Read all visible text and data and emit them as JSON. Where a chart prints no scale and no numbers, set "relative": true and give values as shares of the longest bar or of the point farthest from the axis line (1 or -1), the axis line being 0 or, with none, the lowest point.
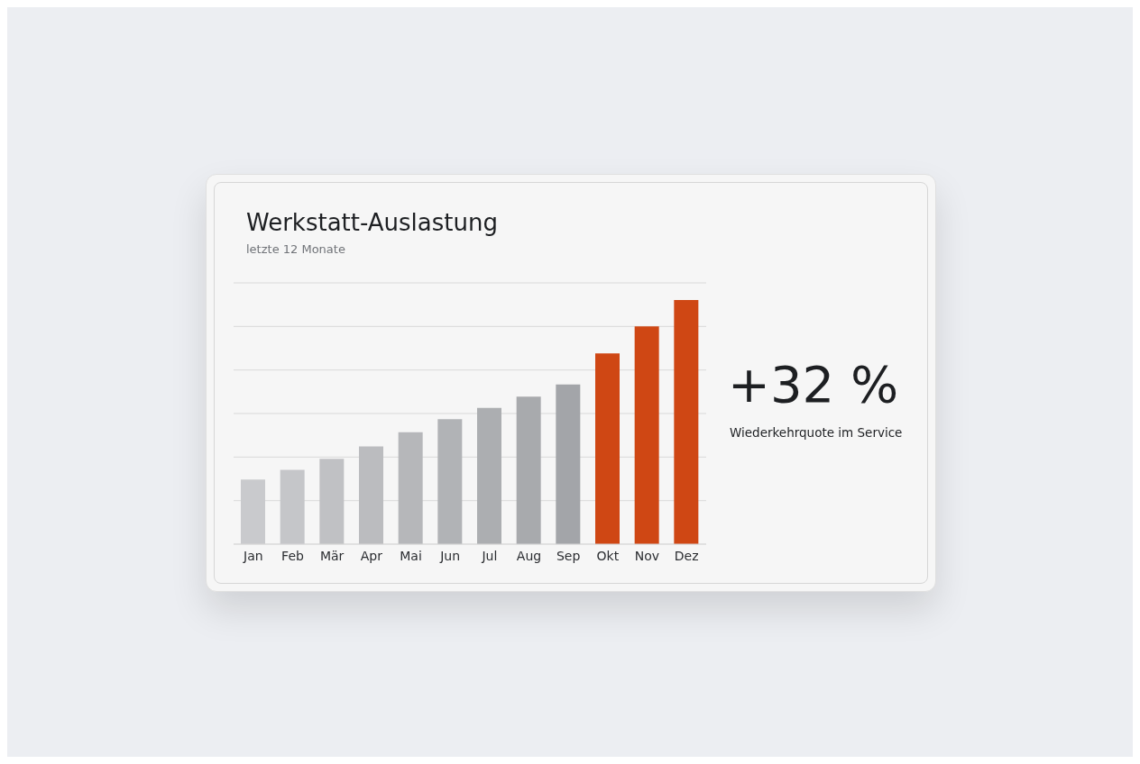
{
  "chart_data": {
    "type": "bar",
    "title": "Werkstatt-Auslastung",
    "subtitle": "letzte 12 Monate",
    "categories": [
      "Jan",
      "Feb",
      "Mär",
      "Apr",
      "Mai",
      "Jun",
      "Jul",
      "Aug",
      "Sep",
      "Okt",
      "Nov",
      "Dez"
    ],
    "values": [
      0.265,
      0.304,
      0.35,
      0.4,
      0.458,
      0.512,
      0.558,
      0.604,
      0.654,
      0.781,
      0.892,
      1
    ],
    "colors": [
      "#c9cacd",
      "#c5c6c9",
      "#c0c1c4",
      "#bbbcbf",
      "#b6b7ba",
      "#b1b3b6",
      "#acaeb1",
      "#a8aaad",
      "#a3a5a9",
      "#cf4714",
      "#cf4714",
      "#cf4714"
    ],
    "relative": true,
    "grid": "y",
    "annotations": [
      "+32 %",
      "Wiederkehrquote im Service"
    ]
  }
}
